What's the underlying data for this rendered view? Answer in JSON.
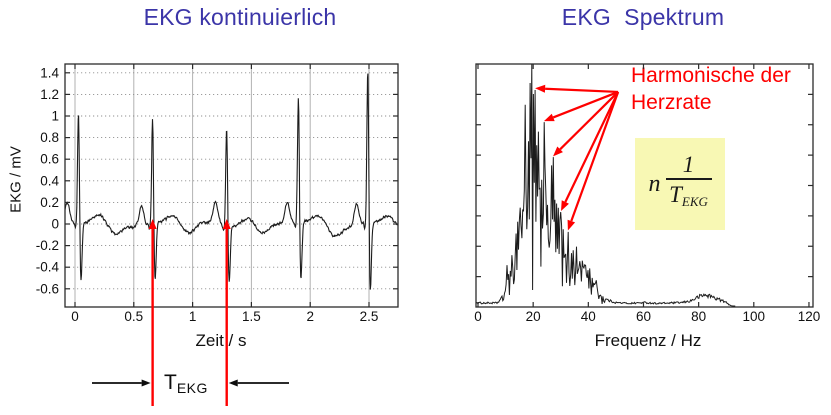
{
  "titles": {
    "left": "EKG kontinuierlich",
    "right": "EKG  Spektrum"
  },
  "annotations": {
    "harmonics_line1": "Harmonische der",
    "harmonics_line2": "Herzrate",
    "formula": {
      "factor": "n",
      "numerator": "1",
      "denominator_main": "T",
      "denominator_sub": "EKG"
    },
    "t_ekg_label": {
      "main": "T",
      "sub": "EKG"
    }
  },
  "colors": {
    "title": "#3b35a8",
    "annotation_red": "#fe0000",
    "formula_bg": "#f8f8b4",
    "trace": "#1c1c1c",
    "axis": "#2b2b2b",
    "grid_vertical": "#b2b2b2",
    "grid_horizontal": "#8f8f8f"
  },
  "chart_data": [
    {
      "type": "line",
      "id": "ekg-time-series",
      "title": "EKG kontinuierlich",
      "xlabel": "Zeit / s",
      "ylabel": "EKG / mV",
      "xlim": [
        -0.085,
        2.747
      ],
      "ylim": [
        -0.768,
        1.481
      ],
      "xticks": [
        0,
        0.5,
        1,
        1.5,
        2,
        2.5
      ],
      "xtick_labels": [
        "0",
        "0.5",
        "1",
        "1.5",
        "2",
        "2.5"
      ],
      "yticks": [
        1.4,
        1.2,
        1,
        0.8,
        0.6,
        0.4,
        0.2,
        0,
        -0.2,
        -0.4,
        -0.6
      ],
      "ytick_labels": [
        "1.4",
        "1.2",
        "1",
        "0.8",
        "0.6",
        "0.4",
        "0.2",
        "0",
        "-0.2",
        "-0.4",
        "-0.6"
      ],
      "grid": true,
      "beats": {
        "times": [
          0.03,
          0.66,
          1.29,
          1.9,
          2.49
        ],
        "r_peaks": [
          1.08,
          1.03,
          0.97,
          1.21,
          1.47
        ],
        "s_dips": [
          -0.56,
          -0.55,
          -0.55,
          -0.56,
          -0.66
        ],
        "p_amp": 0.19,
        "t_amp": 0.07
      },
      "period_marker_times": [
        0.66,
        1.29
      ]
    },
    {
      "type": "line",
      "id": "ekg-spectrum",
      "title": "EKG Spektrum",
      "xlabel": "Frequenz / Hz",
      "ylabel": "",
      "xlim": [
        -0.7,
        121.5
      ],
      "ylim": [
        0,
        1
      ],
      "xticks": [
        0,
        20,
        40,
        60,
        80,
        100,
        120
      ],
      "xtick_labels": [
        "0",
        "20",
        "40",
        "60",
        "80",
        "100",
        "120"
      ],
      "y_minor_tick_count": 7,
      "grid": false,
      "envelope": [
        [
          0,
          0.02
        ],
        [
          7,
          0.02
        ],
        [
          8,
          0.035
        ],
        [
          9,
          0.05
        ],
        [
          10,
          0.13
        ],
        [
          11,
          0.22
        ],
        [
          12,
          0.18
        ],
        [
          13,
          0.3
        ],
        [
          14,
          0.5
        ],
        [
          15,
          0.62
        ],
        [
          16,
          0.55
        ],
        [
          17,
          0.93
        ],
        [
          18,
          0.8
        ],
        [
          19,
          0.98
        ],
        [
          20,
          0.9
        ],
        [
          21,
          0.8
        ],
        [
          22,
          0.72
        ],
        [
          23,
          0.65
        ],
        [
          24,
          0.76
        ],
        [
          25,
          0.6
        ],
        [
          26,
          0.55
        ],
        [
          27,
          0.62
        ],
        [
          28,
          0.5
        ],
        [
          29,
          0.42
        ],
        [
          30,
          0.39
        ],
        [
          31,
          0.33
        ],
        [
          32,
          0.31
        ],
        [
          33,
          0.28
        ],
        [
          34,
          0.25
        ],
        [
          35,
          0.3
        ],
        [
          36,
          0.24
        ],
        [
          37,
          0.28
        ],
        [
          38,
          0.28
        ],
        [
          39,
          0.24
        ],
        [
          40,
          0.22
        ],
        [
          41,
          0.16
        ],
        [
          42,
          0.2
        ],
        [
          43,
          0.12
        ],
        [
          44,
          0.09
        ],
        [
          45,
          0.06
        ],
        [
          46,
          0.04
        ],
        [
          48,
          0.03
        ],
        [
          50,
          0.022
        ],
        [
          55,
          0.018
        ],
        [
          60,
          0.022
        ],
        [
          65,
          0.018
        ],
        [
          70,
          0.02
        ],
        [
          74,
          0.022
        ],
        [
          77,
          0.03
        ],
        [
          80,
          0.05
        ],
        [
          82,
          0.06
        ],
        [
          84,
          0.055
        ],
        [
          86,
          0.045
        ],
        [
          88,
          0.035
        ],
        [
          90,
          0.022
        ],
        [
          91,
          0.012
        ],
        [
          92,
          0.006
        ],
        [
          93,
          0.004
        ]
      ],
      "forced_peaks": [
        [
          19.5,
          1.0
        ],
        [
          19.8,
          0.07
        ],
        [
          20.7,
          0.893
        ],
        [
          23.9,
          0.761
        ],
        [
          27.2,
          0.617
        ],
        [
          30.1,
          0.391
        ],
        [
          32.6,
          0.309
        ]
      ],
      "harmonic_arrows": {
        "origin": [
          50.8,
          0.885
        ],
        "tips": [
          [
            20.7,
            0.9
          ],
          [
            23.9,
            0.765
          ],
          [
            27.2,
            0.62
          ],
          [
            30.1,
            0.395
          ],
          [
            32.6,
            0.315
          ]
        ]
      }
    }
  ]
}
